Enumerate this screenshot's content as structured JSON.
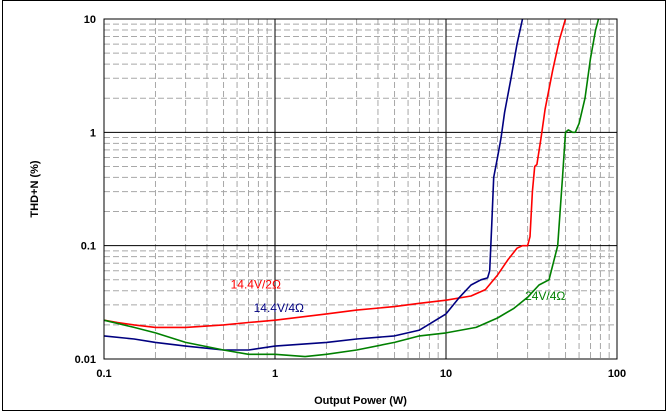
{
  "chart_data": {
    "type": "line",
    "xlabel": "Output Power (W)",
    "ylabel": "THD+N (%)",
    "x_scale": "log",
    "y_scale": "log",
    "xlim": [
      0.1,
      100
    ],
    "ylim": [
      0.01,
      10
    ],
    "grid": true,
    "x_ticks": [
      "0.1",
      "1",
      "10",
      "100"
    ],
    "y_ticks": [
      "0.01",
      "0.1",
      "1",
      "10"
    ],
    "series": [
      {
        "name": "14.4V/2Ω",
        "color": "#ff0000",
        "points": [
          [
            0.1,
            0.022
          ],
          [
            0.12,
            0.021
          ],
          [
            0.15,
            0.02
          ],
          [
            0.2,
            0.019
          ],
          [
            0.3,
            0.019
          ],
          [
            0.5,
            0.02
          ],
          [
            0.7,
            0.021
          ],
          [
            1,
            0.022
          ],
          [
            2,
            0.025
          ],
          [
            3,
            0.027
          ],
          [
            5,
            0.029
          ],
          [
            7,
            0.031
          ],
          [
            10,
            0.033
          ],
          [
            14,
            0.036
          ],
          [
            17,
            0.041
          ],
          [
            20,
            0.055
          ],
          [
            23,
            0.075
          ],
          [
            26,
            0.095
          ],
          [
            28,
            0.1
          ],
          [
            30,
            0.1
          ],
          [
            31,
            0.12
          ],
          [
            32,
            0.3
          ],
          [
            33,
            0.5
          ],
          [
            34,
            0.52
          ],
          [
            36,
            0.9
          ],
          [
            38,
            1.6
          ],
          [
            42,
            3.5
          ],
          [
            46,
            6.5
          ],
          [
            50,
            10
          ]
        ]
      },
      {
        "name": "14.4V/4Ω",
        "color": "#000080",
        "points": [
          [
            0.1,
            0.016
          ],
          [
            0.15,
            0.015
          ],
          [
            0.2,
            0.014
          ],
          [
            0.3,
            0.013
          ],
          [
            0.5,
            0.012
          ],
          [
            0.7,
            0.012
          ],
          [
            1,
            0.013
          ],
          [
            2,
            0.014
          ],
          [
            3,
            0.015
          ],
          [
            5,
            0.016
          ],
          [
            7,
            0.018
          ],
          [
            10,
            0.025
          ],
          [
            12,
            0.035
          ],
          [
            14,
            0.045
          ],
          [
            16,
            0.05
          ],
          [
            17.5,
            0.052
          ],
          [
            18,
            0.06
          ],
          [
            18.5,
            0.15
          ],
          [
            19,
            0.4
          ],
          [
            20,
            0.6
          ],
          [
            21,
            0.9
          ],
          [
            22,
            1.5
          ],
          [
            24,
            3.0
          ],
          [
            26,
            6.0
          ],
          [
            28,
            10
          ]
        ]
      },
      {
        "name": "24V/4Ω",
        "color": "#008000",
        "points": [
          [
            0.1,
            0.022
          ],
          [
            0.15,
            0.019
          ],
          [
            0.2,
            0.017
          ],
          [
            0.3,
            0.014
          ],
          [
            0.5,
            0.012
          ],
          [
            0.7,
            0.011
          ],
          [
            1,
            0.011
          ],
          [
            1.5,
            0.0105
          ],
          [
            2,
            0.011
          ],
          [
            3,
            0.012
          ],
          [
            5,
            0.014
          ],
          [
            7,
            0.016
          ],
          [
            10,
            0.017
          ],
          [
            15,
            0.019
          ],
          [
            20,
            0.023
          ],
          [
            25,
            0.028
          ],
          [
            30,
            0.035
          ],
          [
            35,
            0.045
          ],
          [
            40,
            0.05
          ],
          [
            45,
            0.1
          ],
          [
            48,
            0.4
          ],
          [
            50,
            1.0
          ],
          [
            52,
            1.05
          ],
          [
            55,
            1.0
          ],
          [
            57,
            1.0
          ],
          [
            60,
            1.2
          ],
          [
            65,
            2.0
          ],
          [
            70,
            4.5
          ],
          [
            75,
            8.0
          ],
          [
            78,
            10
          ]
        ]
      }
    ],
    "annotations": [
      {
        "text": "14.4V/2Ω",
        "series": "14.4V/2Ω",
        "at": [
          0.55,
          0.042
        ]
      },
      {
        "text": "14.4V/4Ω",
        "series": "14.4V/4Ω",
        "at": [
          0.75,
          0.026
        ]
      },
      {
        "text": "24V/4Ω",
        "series": "24V/4Ω",
        "at": [
          29,
          0.033
        ]
      }
    ]
  }
}
